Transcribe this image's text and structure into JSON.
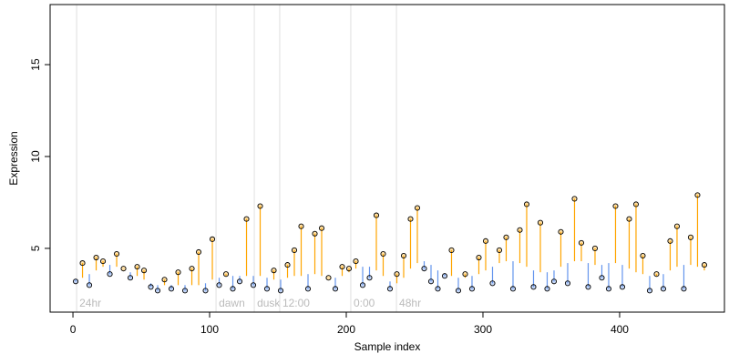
{
  "chart_data": {
    "type": "residual-scatter",
    "xlabel": "Sample index",
    "ylabel": "Expression",
    "xlim": [
      -16.7,
      476.7
    ],
    "ylim": [
      1.53,
      18.27
    ],
    "xticks": [
      0,
      100,
      200,
      300,
      400
    ],
    "yticks": [
      5,
      10,
      15
    ],
    "above_color": "#ffa500",
    "below_color": "#6495ed",
    "annotation_color": "#bbbbbb",
    "annotations": [
      {
        "text": "24hr",
        "x": 2.7
      },
      {
        "text": "dawn",
        "x": 104.7
      },
      {
        "text": "dusk",
        "x": 132.7
      },
      {
        "text": "12:00",
        "x": 151.3
      },
      {
        "text": "0:00",
        "x": 203.3
      },
      {
        "text": "48hr",
        "x": 236.7
      }
    ],
    "x": [
      2,
      7,
      12,
      17,
      22,
      27,
      32,
      37,
      42,
      47,
      52,
      57,
      62,
      67,
      72,
      77,
      82,
      87,
      92,
      97,
      102,
      107,
      112,
      117,
      122,
      127,
      132,
      137,
      142,
      147,
      152,
      157,
      162,
      167,
      172,
      177,
      182,
      187,
      192,
      197,
      202,
      207,
      212,
      217,
      222,
      227,
      232,
      237,
      242,
      247,
      252,
      257,
      262,
      267,
      272,
      277,
      282,
      287,
      292,
      297,
      302,
      307,
      312,
      317,
      322,
      327,
      332,
      337,
      342,
      347,
      352,
      357,
      362,
      367,
      372,
      377,
      382,
      387,
      392,
      397,
      402,
      407,
      412,
      417,
      422,
      427,
      432,
      437,
      442,
      447,
      452,
      457,
      462
    ],
    "values": [
      3.2,
      4.2,
      3.0,
      4.5,
      4.3,
      3.6,
      4.7,
      3.9,
      3.4,
      4.0,
      3.8,
      2.9,
      2.7,
      3.3,
      2.8,
      3.7,
      2.7,
      3.9,
      4.8,
      2.7,
      5.5,
      3.0,
      3.6,
      2.8,
      3.2,
      6.6,
      3.0,
      7.3,
      2.8,
      3.8,
      2.7,
      4.1,
      4.9,
      6.2,
      2.8,
      5.8,
      6.1,
      3.4,
      2.8,
      4.0,
      3.9,
      4.3,
      3.0,
      3.4,
      6.8,
      4.7,
      2.8,
      3.6,
      4.6,
      6.6,
      7.2,
      3.9,
      3.2,
      2.8,
      3.5,
      4.9,
      2.7,
      3.6,
      2.8,
      4.5,
      5.4,
      3.1,
      4.9,
      5.6,
      2.8,
      6.0,
      7.4,
      2.9,
      6.4,
      2.8,
      3.2,
      5.9,
      3.1,
      7.7,
      5.3,
      2.9,
      5.0,
      3.4,
      2.8,
      7.3,
      2.9,
      6.6,
      7.4,
      4.6,
      2.7,
      3.6,
      2.8,
      5.4,
      6.2,
      2.8,
      5.6,
      7.9,
      4.1
    ],
    "fit": [
      3.3,
      3.4,
      3.6,
      3.8,
      4.0,
      4.1,
      4.0,
      3.9,
      3.7,
      3.5,
      3.3,
      3.1,
      3.0,
      3.0,
      3.0,
      3.0,
      3.0,
      3.0,
      3.0,
      3.1,
      3.3,
      3.4,
      3.5,
      3.5,
      3.5,
      3.5,
      3.5,
      3.5,
      3.4,
      3.3,
      3.3,
      3.4,
      3.5,
      3.5,
      3.6,
      3.6,
      3.5,
      3.4,
      3.4,
      3.5,
      3.7,
      3.9,
      4.0,
      4.0,
      3.8,
      3.5,
      3.2,
      3.1,
      3.4,
      3.9,
      4.2,
      4.3,
      4.1,
      3.8,
      3.6,
      3.5,
      3.4,
      3.4,
      3.5,
      3.6,
      3.8,
      4.0,
      4.2,
      4.3,
      4.3,
      4.2,
      4.0,
      3.8,
      3.7,
      3.7,
      3.8,
      4.0,
      4.2,
      4.3,
      4.3,
      4.2,
      4.1,
      4.1,
      4.2,
      4.2,
      4.1,
      3.9,
      3.7,
      3.6,
      3.5,
      3.5,
      3.6,
      3.8,
      4.0,
      4.1,
      4.1,
      4.0,
      3.8
    ]
  }
}
